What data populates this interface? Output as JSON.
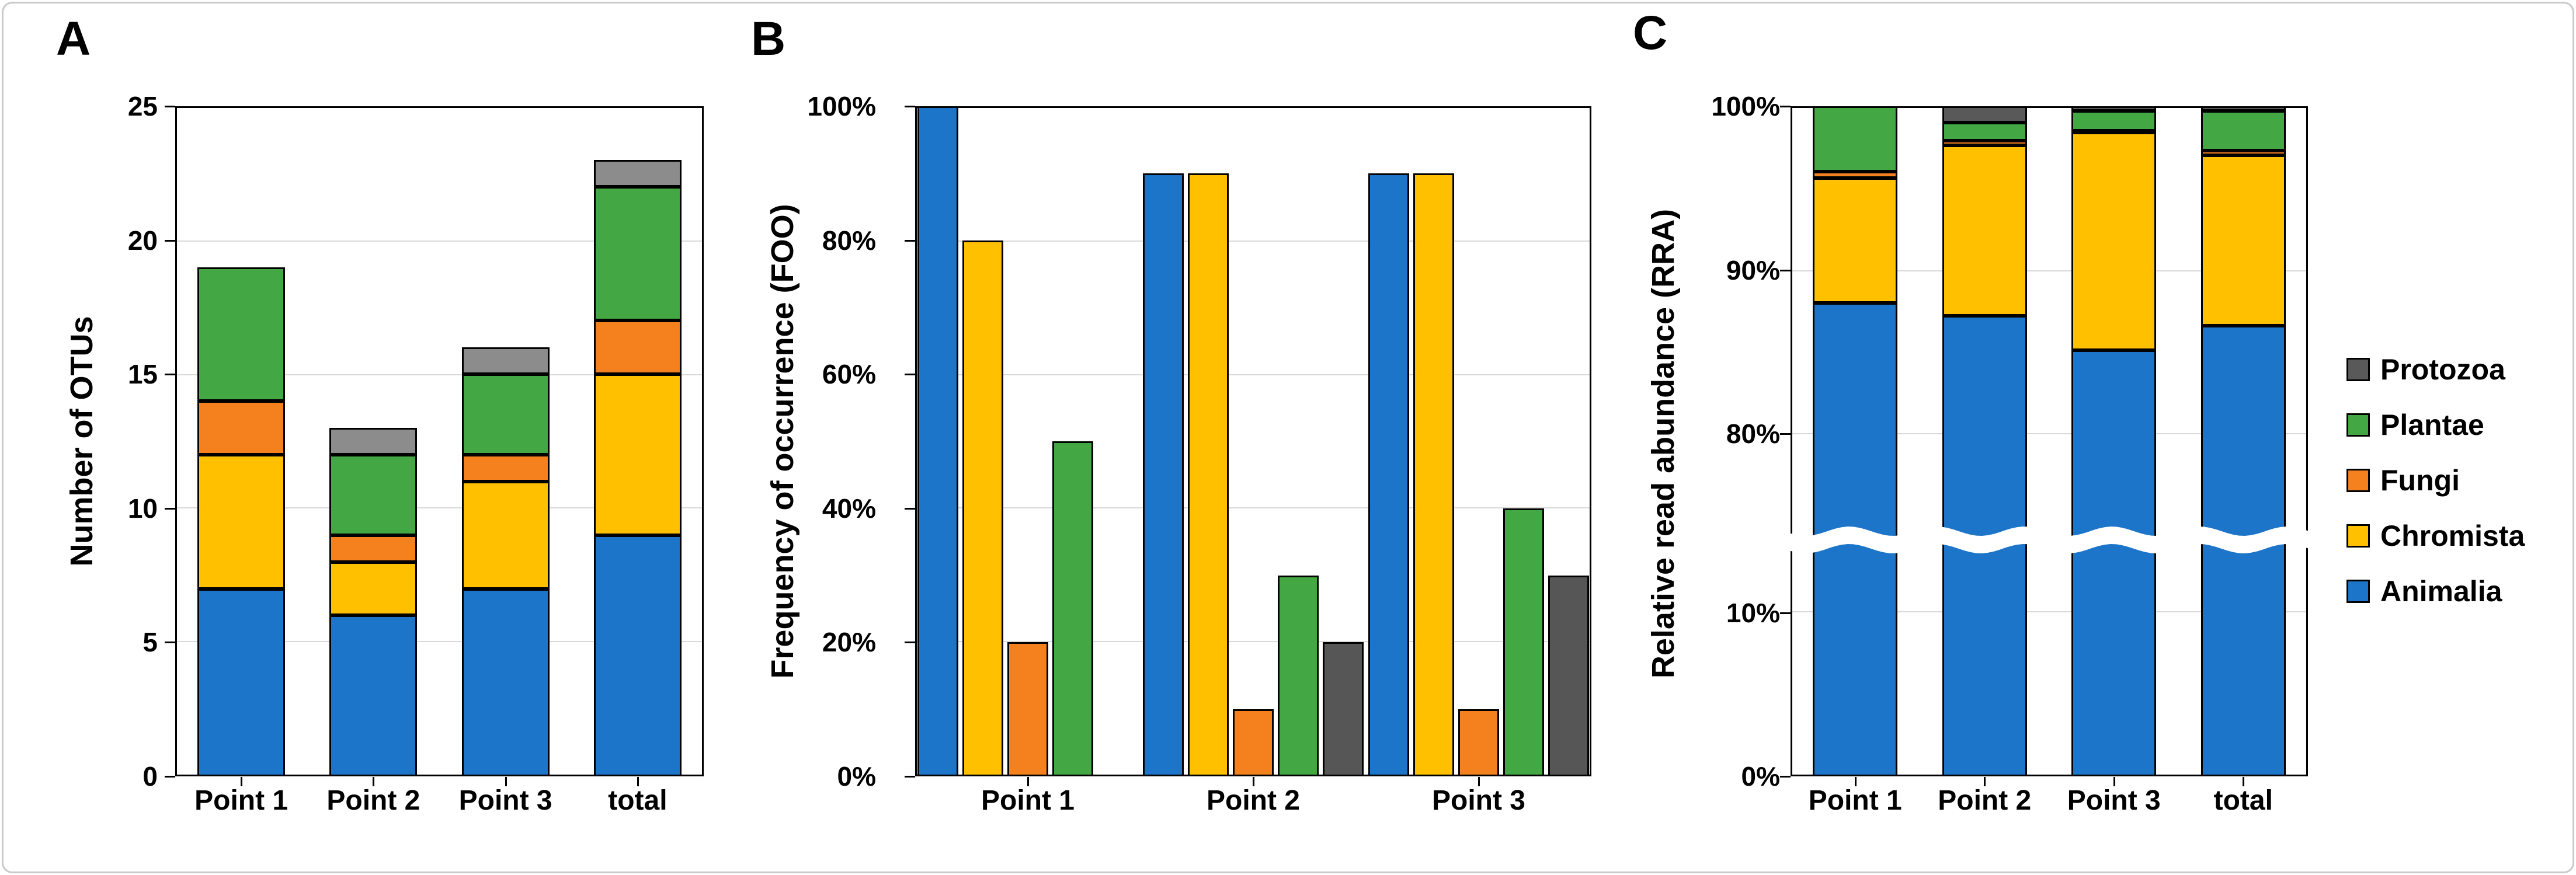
{
  "figure": {
    "background": "#ffffff",
    "border_color": "#c9c9c9"
  },
  "panels": {
    "A": {
      "letter": "A",
      "y_axis_title": "Number of OTUs"
    },
    "B": {
      "letter": "B",
      "y_axis_title": "Frequency of occurrence (FOO)"
    },
    "C": {
      "letter": "C",
      "y_axis_title": "Relative read abundance (RRA)"
    }
  },
  "legend": {
    "position": "right-of-chart-C",
    "items": [
      {
        "label": "Protozoa",
        "color": "#595959"
      },
      {
        "label": "Plantae",
        "color": "#43A843"
      },
      {
        "label": "Fungi",
        "color": "#F5811E"
      },
      {
        "label": "Chromista",
        "color": "#FFC000"
      },
      {
        "label": "Animalia",
        "color": "#1C75C9"
      }
    ]
  },
  "colors": {
    "animalia": "#1C75C9",
    "chromista": "#FFC000",
    "fungi": "#F5811E",
    "plantae": "#43A843",
    "protozoa_chart_a": "#8C8C8C",
    "protozoa_chart_b": "#565656",
    "protozoa_chart_c": "#595959",
    "gridline": "#d9d9d9",
    "bar_border": "#000000"
  },
  "chart_data": [
    {
      "panel": "A",
      "type": "bar",
      "subtype": "stacked",
      "ylabel": "Number of OTUs",
      "ylim": [
        0,
        25
      ],
      "yticks": [
        0,
        5,
        10,
        15,
        20,
        25
      ],
      "ytick_labels": [
        "0",
        "5",
        "10",
        "15",
        "20",
        "25"
      ],
      "grid": true,
      "categories": [
        "Point 1",
        "Point 2",
        "Point 3",
        "total"
      ],
      "stack_order_bottom_to_top": [
        "Animalia",
        "Chromista",
        "Fungi",
        "Plantae",
        "Protozoa"
      ],
      "series": [
        {
          "name": "Animalia",
          "values": [
            7,
            6,
            7,
            9
          ]
        },
        {
          "name": "Chromista",
          "values": [
            5,
            2,
            4,
            6
          ]
        },
        {
          "name": "Fungi",
          "values": [
            2,
            1,
            1,
            2
          ]
        },
        {
          "name": "Plantae",
          "values": [
            5,
            3,
            3,
            5
          ]
        },
        {
          "name": "Protozoa",
          "values": [
            0,
            1,
            1,
            1
          ]
        }
      ],
      "bar_totals": [
        19,
        13,
        16,
        23
      ]
    },
    {
      "panel": "B",
      "type": "bar",
      "subtype": "grouped",
      "ylabel": "Frequency of occurrence (FOO)",
      "unit": "%",
      "ylim": [
        0,
        100
      ],
      "yticks": [
        0,
        20,
        40,
        60,
        80,
        100
      ],
      "ytick_labels": [
        "0%",
        "20%",
        "40%",
        "60%",
        "80%",
        "100%"
      ],
      "grid": true,
      "categories": [
        "Point 1",
        "Point 2",
        "Point 3"
      ],
      "group_order_left_to_right": [
        "Animalia",
        "Chromista",
        "Fungi",
        "Plantae",
        "Protozoa"
      ],
      "series": [
        {
          "name": "Animalia",
          "values": [
            100,
            90,
            90
          ]
        },
        {
          "name": "Chromista",
          "values": [
            80,
            90,
            90
          ]
        },
        {
          "name": "Fungi",
          "values": [
            20,
            10,
            10
          ]
        },
        {
          "name": "Plantae",
          "values": [
            50,
            30,
            40
          ]
        },
        {
          "name": "Protozoa",
          "values": [
            0,
            20,
            30
          ]
        }
      ]
    },
    {
      "panel": "C",
      "type": "bar",
      "subtype": "stacked_percent",
      "ylabel": "Relative read abundance (RRA)",
      "unit": "%",
      "ylim": [
        0,
        100
      ],
      "yticks_shown": [
        0,
        10,
        80,
        90,
        100
      ],
      "ytick_labels": [
        "0%",
        "10%",
        "80%",
        "90%",
        "100%"
      ],
      "axis_break": {
        "lower_section_max": 14.5,
        "upper_section_min": 74.5,
        "style": "white-wavy-band"
      },
      "grid": true,
      "categories": [
        "Point 1",
        "Point 2",
        "Point 3",
        "total"
      ],
      "stack_order_bottom_to_top": [
        "Animalia",
        "Chromista",
        "Fungi",
        "Plantae",
        "Protozoa"
      ],
      "series": [
        {
          "name": "Animalia",
          "values": [
            88.0,
            87.2,
            85.1,
            86.6
          ]
        },
        {
          "name": "Chromista",
          "values": [
            7.6,
            10.4,
            13.3,
            10.4
          ]
        },
        {
          "name": "Fungi",
          "values": [
            0.4,
            0.3,
            0.1,
            0.3
          ]
        },
        {
          "name": "Plantae",
          "values": [
            4.0,
            1.1,
            1.2,
            2.4
          ]
        },
        {
          "name": "Protozoa",
          "values": [
            0.0,
            1.0,
            0.3,
            0.3
          ]
        }
      ]
    }
  ]
}
